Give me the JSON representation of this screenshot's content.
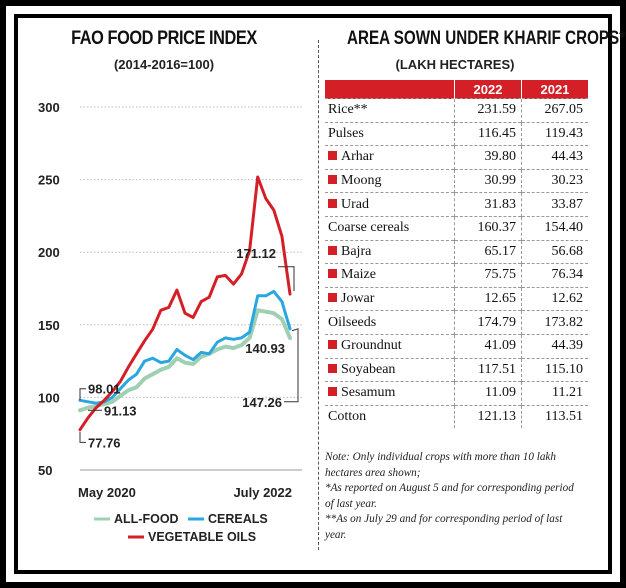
{
  "left_panel": {
    "title": "FAO FOOD PRICE INDEX",
    "subtitle": "(2014-2016=100)"
  },
  "right_panel": {
    "title": "AREA SOWN UNDER KHARIF CROPS*",
    "subtitle": "(LAKH HECTARES)",
    "header": [
      "",
      "2022",
      "2021"
    ],
    "rows": [
      {
        "name": "Rice**",
        "sub": false,
        "v2022": "231.59",
        "v2021": "267.05"
      },
      {
        "name": "Pulses",
        "sub": false,
        "v2022": "116.45",
        "v2021": "119.43"
      },
      {
        "name": "Arhar",
        "sub": true,
        "v2022": "39.80",
        "v2021": "44.43"
      },
      {
        "name": "Moong",
        "sub": true,
        "v2022": "30.99",
        "v2021": "30.23"
      },
      {
        "name": "Urad",
        "sub": true,
        "v2022": "31.83",
        "v2021": "33.87"
      },
      {
        "name": "Coarse cereals",
        "sub": false,
        "v2022": "160.37",
        "v2021": "154.40"
      },
      {
        "name": "Bajra",
        "sub": true,
        "v2022": "65.17",
        "v2021": "56.68"
      },
      {
        "name": "Maize",
        "sub": true,
        "v2022": "75.75",
        "v2021": "76.34"
      },
      {
        "name": "Jowar",
        "sub": true,
        "v2022": "12.65",
        "v2021": "12.62"
      },
      {
        "name": "Oilseeds",
        "sub": false,
        "v2022": "174.79",
        "v2021": "173.82"
      },
      {
        "name": "Groundnut",
        "sub": true,
        "v2022": "41.09",
        "v2021": "44.39"
      },
      {
        "name": "Soyabean",
        "sub": true,
        "v2022": "117.51",
        "v2021": "115.10"
      },
      {
        "name": "Sesamum",
        "sub": true,
        "v2022": "11.09",
        "v2021": "11.21"
      },
      {
        "name": "Cotton",
        "sub": false,
        "v2022": "121.13",
        "v2021": "113.51"
      }
    ],
    "notes": [
      "Note: Only individual crops with more than 10 lakh hectares area shown;",
      "*As reported on August 5 and for corresponding period of last year.",
      "**As on July 29 and for corresponding period of last year."
    ]
  },
  "colors": {
    "vegetable_oils": "#d41f26",
    "cereals": "#2aa7e0",
    "all_food": "#9fd0b3",
    "accent_red": "#d41f26"
  },
  "chart_data": {
    "type": "line",
    "title": "FAO FOOD PRICE INDEX",
    "subtitle": "(2014-2016=100)",
    "x_tick_labels": [
      "May 2020",
      "July 2022"
    ],
    "yticks": [
      50,
      100,
      150,
      200,
      250,
      300
    ],
    "ylim": [
      50,
      300
    ],
    "grid": true,
    "legend_position": "bottom",
    "x": [
      "2020-05",
      "2020-06",
      "2020-07",
      "2020-08",
      "2020-09",
      "2020-10",
      "2020-11",
      "2020-12",
      "2021-01",
      "2021-02",
      "2021-03",
      "2021-04",
      "2021-05",
      "2021-06",
      "2021-07",
      "2021-08",
      "2021-09",
      "2021-10",
      "2021-11",
      "2021-12",
      "2022-01",
      "2022-02",
      "2022-03",
      "2022-04",
      "2022-05",
      "2022-06",
      "2022-07"
    ],
    "series": [
      {
        "name": "ALL-FOOD",
        "color": "#9fd0b3",
        "values": [
          91.13,
          93,
          94,
          95.5,
          97,
          101,
          105,
          107,
          113,
          116,
          119,
          121,
          127,
          124,
          123,
          128,
          130,
          133,
          135,
          134,
          136,
          141,
          160,
          159,
          158,
          154,
          140.93
        ]
      },
      {
        "name": "CEREALS",
        "color": "#2aa7e0",
        "values": [
          98.01,
          97,
          96,
          97,
          100,
          106,
          112,
          116,
          125,
          127,
          124,
          125,
          133,
          129,
          126,
          131,
          130,
          138,
          141,
          140,
          141,
          145,
          170,
          170,
          173,
          166,
          147.26
        ]
      },
      {
        "name": "VEGETABLE OILS",
        "color": "#d41f26",
        "values": [
          77.76,
          86,
          93,
          98,
          104,
          111,
          121,
          130,
          139,
          147,
          160,
          162,
          174,
          158,
          155,
          166,
          169,
          183,
          184,
          178,
          185,
          201,
          251.8,
          237,
          229,
          211,
          171.12
        ]
      }
    ],
    "annotations": [
      "171.12",
      "98.01",
      "91.13",
      "77.76",
      "140.93",
      "147.26"
    ]
  }
}
